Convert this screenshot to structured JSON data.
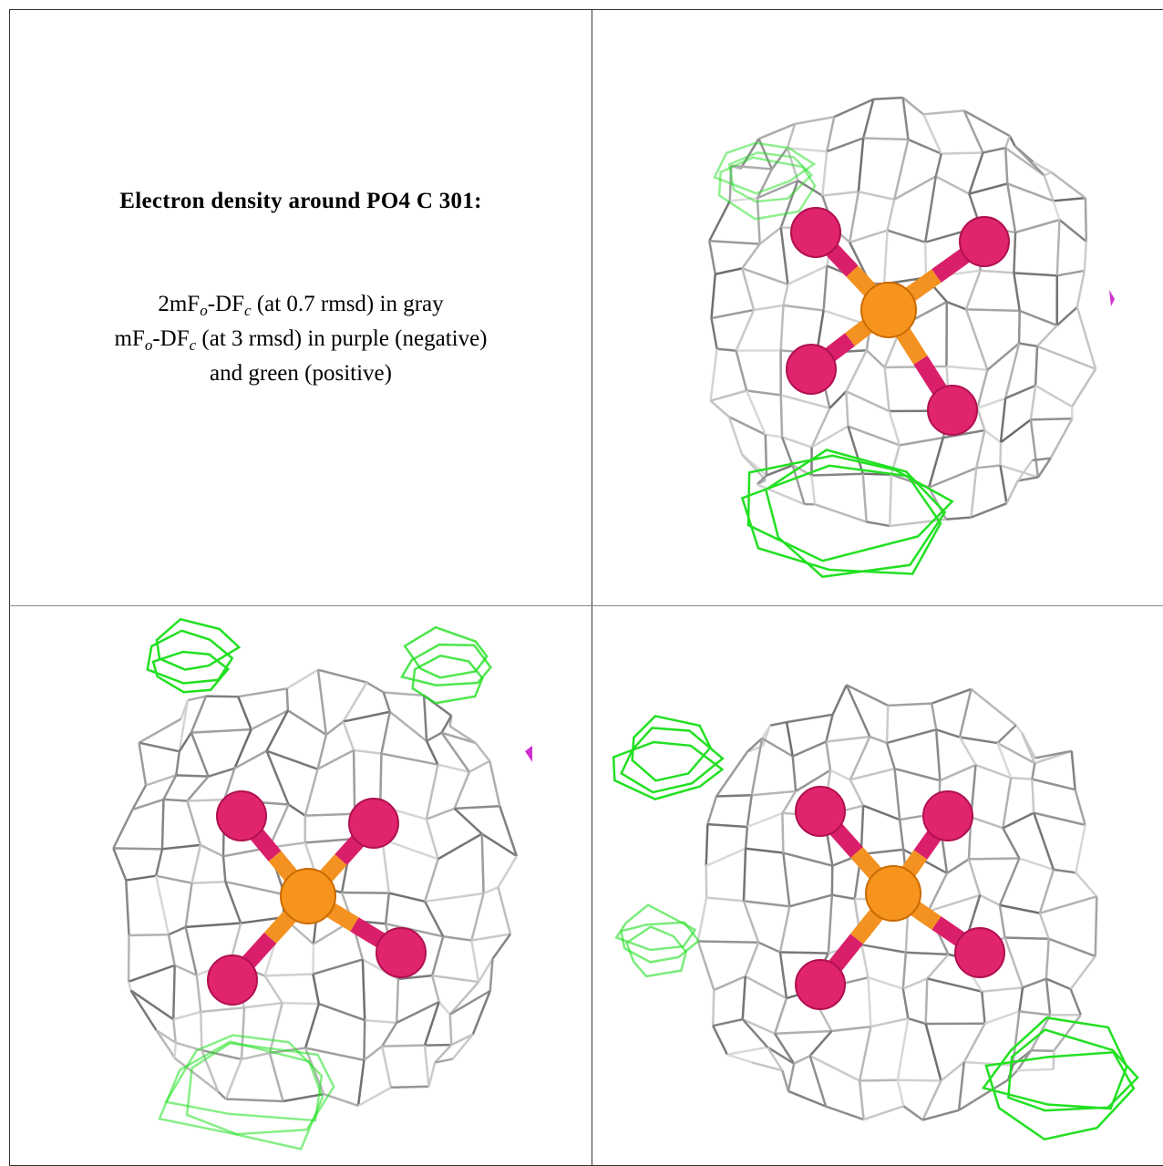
{
  "caption": {
    "title": "Electron density around PO4 C 301:",
    "lines": [
      [
        {
          "text": "2mF"
        },
        {
          "sub": "o"
        },
        {
          "text": "-DF"
        },
        {
          "sub": "c"
        },
        {
          "text": " (at 0.7 rmsd) in gray"
        }
      ],
      [
        {
          "text": "mF"
        },
        {
          "sub": "o"
        },
        {
          "text": "-DF"
        },
        {
          "sub": "c"
        },
        {
          "text": " (at 3 rmsd) in purple (negative)"
        }
      ],
      [
        {
          "text": "and green (positive)"
        }
      ]
    ]
  }
}
